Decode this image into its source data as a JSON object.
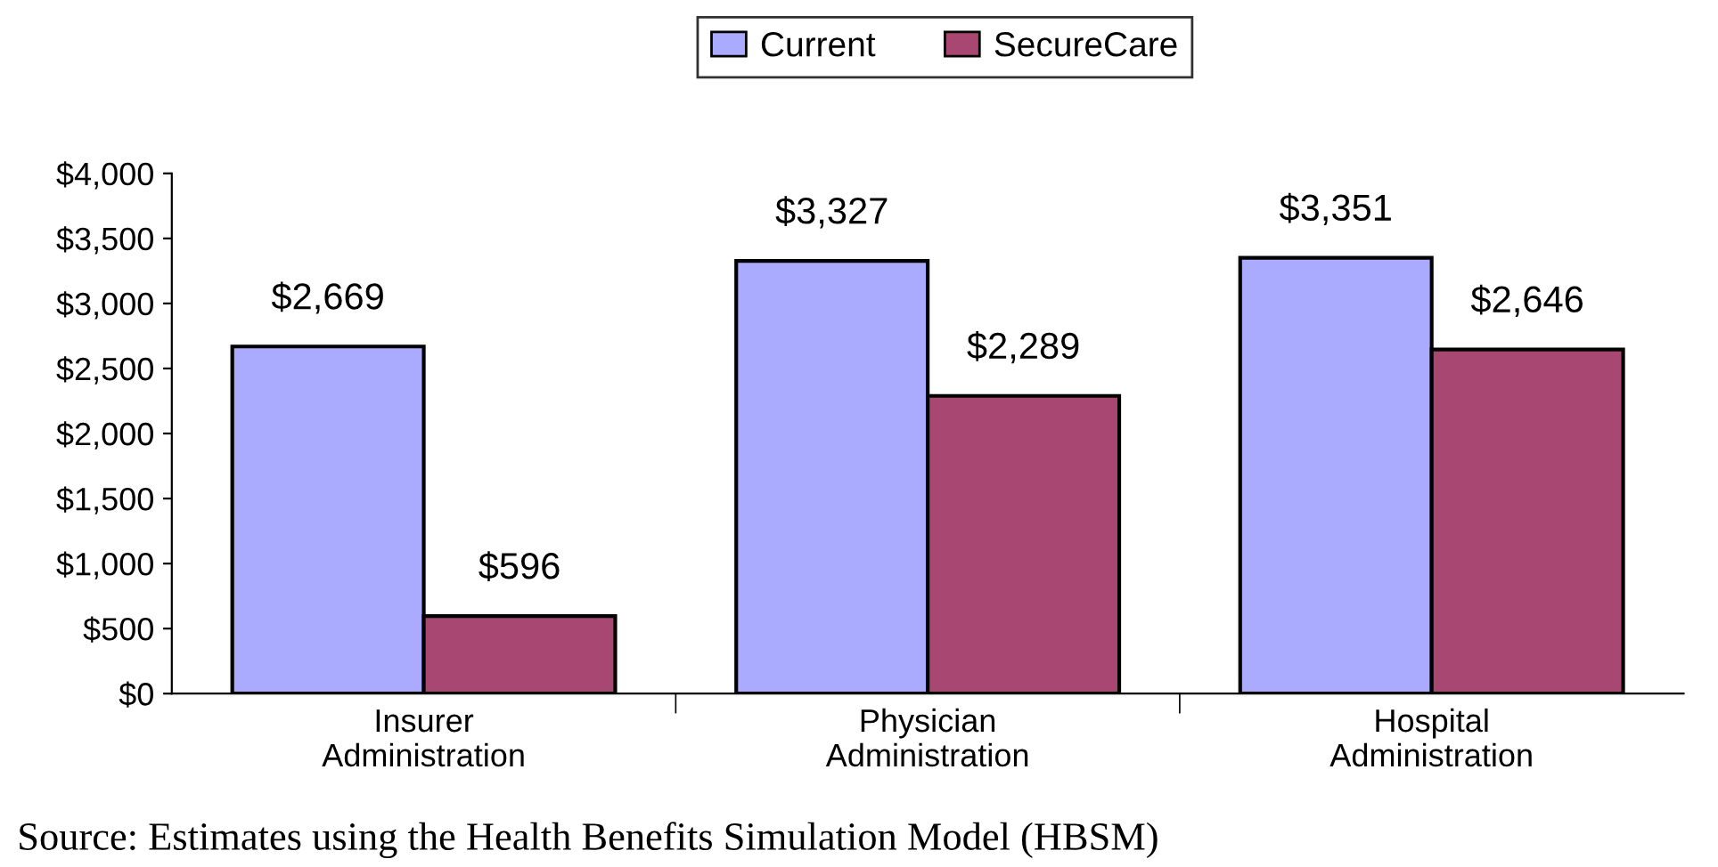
{
  "chart_data": {
    "type": "bar",
    "categories": [
      "Insurer\nAdministration",
      "Physician\nAdministration",
      "Hospital\nAdministration"
    ],
    "series": [
      {
        "name": "Current",
        "color": "#aaaaff",
        "values": [
          2669,
          3327,
          3351
        ],
        "value_labels": [
          "$2,669",
          "$3,327",
          "$3,351"
        ]
      },
      {
        "name": "SecureCare",
        "color": "#a84872",
        "values": [
          596,
          2289,
          2646
        ],
        "value_labels": [
          "$596",
          "$2,289",
          "$2,646"
        ]
      }
    ],
    "ylim": [
      0,
      4000
    ],
    "yticks": [
      {
        "value": 0,
        "label": "$0"
      },
      {
        "value": 500,
        "label": "$500"
      },
      {
        "value": 1000,
        "label": "$1,000"
      },
      {
        "value": 1500,
        "label": "$1,500"
      },
      {
        "value": 2000,
        "label": "$2,000"
      },
      {
        "value": 2500,
        "label": "$2,500"
      },
      {
        "value": 3000,
        "label": "$3,000"
      },
      {
        "value": 3500,
        "label": "$3,500"
      },
      {
        "value": 4000,
        "label": "$4,000"
      }
    ],
    "legend": "top",
    "grid": false,
    "annotations": [
      "Source: Estimates using the Health Benefits Simulation Model (HBSM)"
    ]
  }
}
